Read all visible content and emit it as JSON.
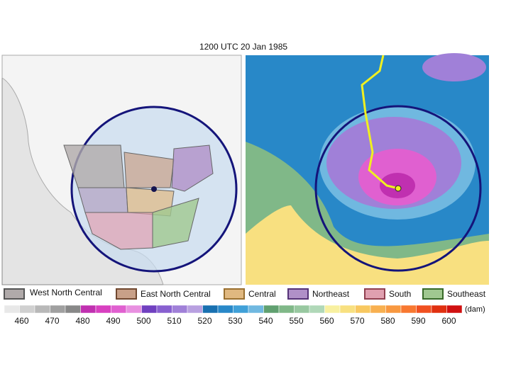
{
  "title": "1200 UTC 20 Jan 1985",
  "legend": [
    {
      "name": "West North Central",
      "color": "#b0aaaa",
      "edge": "#555555"
    },
    {
      "name": "East North Central",
      "color": "#c8a088",
      "edge": "#704830"
    },
    {
      "name": "Central",
      "color": "#e0b880",
      "edge": "#9a7030"
    },
    {
      "name": "Northeast",
      "color": "#b090c8",
      "edge": "#553377"
    },
    {
      "name": "South",
      "color": "#e0a0b0",
      "edge": "#904050"
    },
    {
      "name": "Southeast",
      "color": "#a0c890",
      "edge": "#386a28"
    }
  ],
  "colorbar": {
    "ticks": [
      460,
      470,
      480,
      490,
      500,
      510,
      520,
      530,
      540,
      550,
      560,
      570,
      580,
      590,
      600
    ],
    "unit": "(dam)",
    "colors": [
      "#e8e8e8",
      "#d0d0d0",
      "#b8b8b8",
      "#a0a0a0",
      "#888888",
      "#c030b0",
      "#d840c0",
      "#e060d0",
      "#e890e0",
      "#7040c0",
      "#8860d0",
      "#a080d8",
      "#b8a0e0",
      "#1870b0",
      "#2888c8",
      "#40a0d8",
      "#70b8e0",
      "#60a070",
      "#80b888",
      "#98c8a0",
      "#b0d8b8",
      "#f8f0a0",
      "#f8e080",
      "#f8c860",
      "#f8b050",
      "#f89840",
      "#f87830",
      "#f05020",
      "#e03010",
      "#d01010"
    ]
  }
}
